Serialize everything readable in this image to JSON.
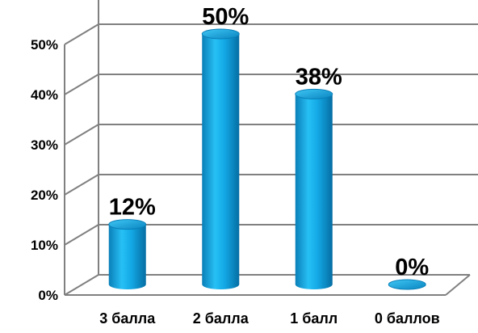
{
  "chart_data": {
    "type": "bar",
    "categories": [
      "3 балла",
      "2 балла",
      "1 балл",
      "0 баллов"
    ],
    "values": [
      12,
      50,
      38,
      0
    ],
    "data_labels": [
      "12%",
      "50%",
      "38%",
      "0%"
    ],
    "y_ticks": [
      0,
      10,
      20,
      30,
      40,
      50
    ],
    "y_tick_labels": [
      "0%",
      "10%",
      "20%",
      "30%",
      "40%",
      "50%"
    ],
    "ylim": [
      0,
      60
    ],
    "grid": true,
    "bar_shape": "cylinder",
    "bar_color": "#0ea5e0",
    "grid_color": "#808080"
  }
}
